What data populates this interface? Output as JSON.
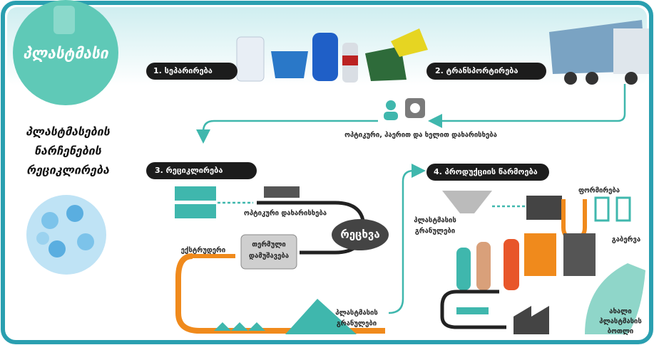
{
  "title": "პლასტმასი",
  "heading_lines": [
    "პლასტმასების",
    "ნარჩენების",
    "რეციკლირება"
  ],
  "steps": [
    "1. სეპარირება",
    "2. ტრანსპორტირება",
    "3. რეციკლირება",
    "4. პროდუქციის წარმოება"
  ],
  "sorting": "ოპტიკური, ჰაერით და ხელით დახარისხება",
  "recycling": {
    "optical": "ოპტიკური დახარისხება",
    "washing": "რეცხვა",
    "thermal": [
      "თერმული",
      "დამუშავება"
    ],
    "extruder": "ექსტრუდერი",
    "granules": [
      "პლასტმასის",
      "გრანულები"
    ]
  },
  "production": {
    "granules": [
      "პლასტმასის",
      "გრანულები"
    ],
    "forming": "ფორმირება",
    "blowing": "გაბერვა",
    "new_bottle": [
      "ახალი",
      "პლასტმასის",
      "ბოთლი"
    ]
  }
}
